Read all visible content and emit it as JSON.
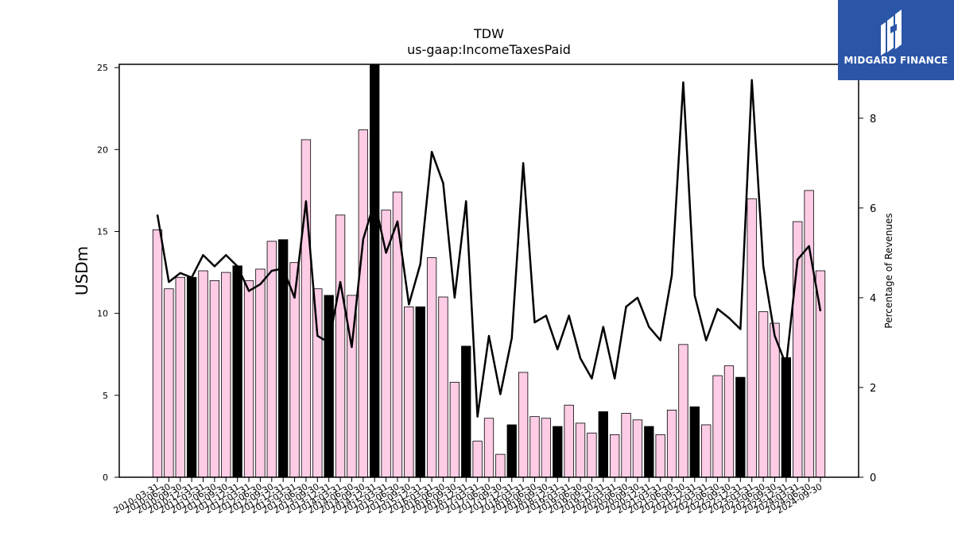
{
  "chart_data": {
    "type": "bar",
    "title": "TDW",
    "subtitle": "us-gaap:IncomeTaxesPaid",
    "ylabel": "USDm",
    "y2label": "Percentage of Revenues",
    "ylim": [
      0,
      25.2
    ],
    "y2lim": [
      0,
      9.2
    ],
    "yticks": [
      0,
      5,
      10,
      15,
      20,
      25
    ],
    "y2ticks": [
      0,
      2,
      4,
      6,
      8
    ],
    "colors": {
      "bar": "#ffcce6",
      "highlight": "#000000",
      "line": "#000000"
    },
    "categories": [
      "2010-03-31",
      "2010-06-30",
      "2010-09-30",
      "2010-12-31",
      "2011-03-31",
      "2011-06-30",
      "2011-09-30",
      "2011-12-31",
      "2012-03-31",
      "2012-06-30",
      "2012-09-30",
      "2012-12-31",
      "2013-03-31",
      "2013-06-30",
      "2013-09-30",
      "2013-12-31",
      "2014-03-31",
      "2014-06-30",
      "2014-09-30",
      "2014-12-31",
      "2015-03-31",
      "2015-06-30",
      "2015-09-30",
      "2015-12-31",
      "2016-03-31",
      "2016-06-30",
      "2016-09-30",
      "2016-12-31",
      "2017-03-31",
      "2017-06-30",
      "2017-09-30",
      "2017-12-31",
      "2018-03-31",
      "2018-06-30",
      "2018-09-30",
      "2018-12-31",
      "2019-03-31",
      "2019-06-30",
      "2019-09-30",
      "2019-12-31",
      "2020-03-31",
      "2020-06-30",
      "2020-09-30",
      "2020-12-31",
      "2021-03-31",
      "2021-06-30",
      "2021-09-30",
      "2021-12-31",
      "2022-03-31",
      "2022-06-30",
      "2022-09-30",
      "2022-12-31",
      "2023-03-31",
      "2023-06-30",
      "2023-09-30",
      "2023-12-31",
      "2024-03-31",
      "2024-06-30",
      "2024-09-30"
    ],
    "series": [
      {
        "values": [
          15.1,
          11.5,
          12.2,
          12.2,
          12.6,
          12.0,
          12.5,
          12.9,
          12.0,
          12.7,
          14.4,
          14.5,
          13.1,
          20.6,
          11.5,
          11.1,
          16.0,
          11.1,
          21.2,
          25.2,
          16.3,
          17.4,
          10.4,
          10.4,
          13.4,
          11.0,
          5.8,
          8.0,
          2.2,
          3.6,
          1.4,
          3.2,
          6.4,
          3.7,
          3.6,
          3.1,
          4.4,
          3.3,
          2.7,
          4.0,
          2.6,
          3.9,
          3.5,
          3.1,
          2.6,
          4.1,
          8.1,
          4.3,
          3.2,
          6.2,
          6.8,
          6.1,
          17.0,
          10.1,
          9.4,
          7.3,
          15.6,
          17.5,
          12.6
        ],
        "highlight": [
          false,
          false,
          false,
          true,
          false,
          false,
          false,
          true,
          false,
          false,
          false,
          true,
          false,
          false,
          false,
          true,
          false,
          false,
          false,
          true,
          false,
          false,
          false,
          true,
          false,
          false,
          false,
          true,
          false,
          false,
          false,
          true,
          false,
          false,
          false,
          true,
          false,
          false,
          false,
          true,
          false,
          false,
          false,
          true,
          false,
          false,
          false,
          true,
          false,
          false,
          false,
          true,
          false,
          false,
          false,
          true,
          false,
          false,
          false
        ]
      },
      {
        "axis": "right",
        "values": [
          5.85,
          4.35,
          4.55,
          4.45,
          4.95,
          4.7,
          4.95,
          4.7,
          4.15,
          4.3,
          4.6,
          4.65,
          4.0,
          6.15,
          3.15,
          3.0,
          4.35,
          2.9,
          5.3,
          6.15,
          5.0,
          5.7,
          3.85,
          4.75,
          7.25,
          6.55,
          4.0,
          6.15,
          1.35,
          3.15,
          1.85,
          3.1,
          7.0,
          3.45,
          3.6,
          2.85,
          3.6,
          2.65,
          2.2,
          3.35,
          2.2,
          3.8,
          4.0,
          3.35,
          3.05,
          4.5,
          8.8,
          4.05,
          3.05,
          3.75,
          3.55,
          3.3,
          8.85,
          4.7,
          3.15,
          2.5,
          4.85,
          5.15,
          3.7
        ]
      }
    ]
  },
  "logo": {
    "text": "MIDGARD FINANCE"
  }
}
